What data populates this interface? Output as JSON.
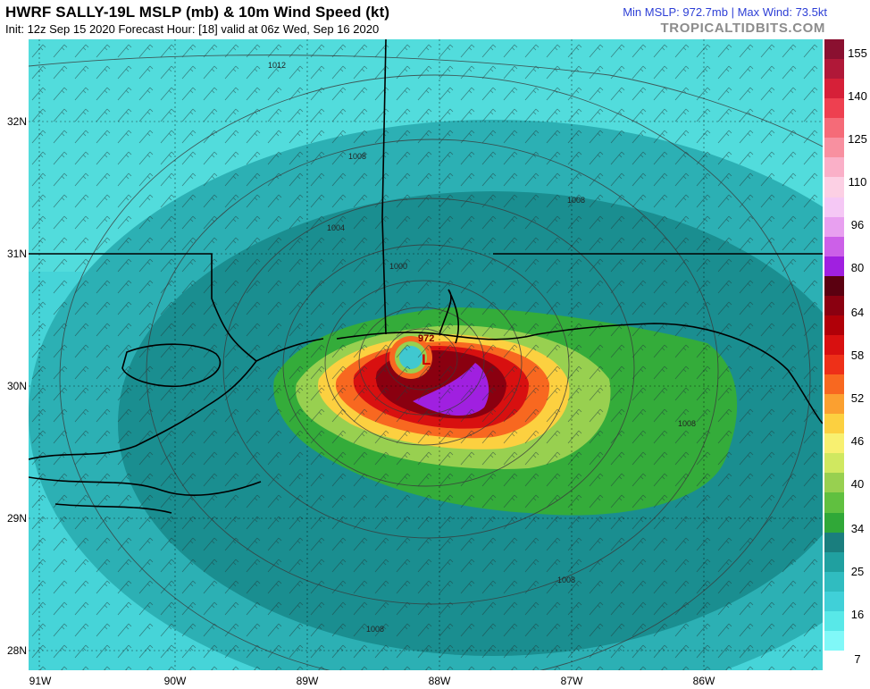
{
  "header": {
    "title": "HWRF SALLY-19L MSLP (mb) & 10m Wind Speed (kt)",
    "subtitle": "Init: 12z Sep 15 2020   Forecast Hour: [18]   valid at 06z Wed, Sep 16 2020",
    "stats": "Min MSLP: 972.7mb | Max Wind: 73.5kt",
    "brand": "TROPICALTIDBITS.COM"
  },
  "map": {
    "lat_labels": [
      "32N",
      "31N",
      "30N",
      "29N",
      "28N"
    ],
    "lon_labels": [
      "91W",
      "90W",
      "89W",
      "88W",
      "87W",
      "86W"
    ],
    "isobar_labels": [
      "1012",
      "1008",
      "1004",
      "1000",
      "1008",
      "1008",
      "1008",
      "1008"
    ],
    "center_label": "972",
    "low_marker": "L"
  },
  "colorbar": {
    "labels": [
      "155",
      "140",
      "125",
      "110",
      "96",
      "80",
      "64",
      "58",
      "52",
      "46",
      "40",
      "34",
      "25",
      "16",
      "7"
    ],
    "colors": [
      "#8a1030",
      "#b01838",
      "#d62038",
      "#ee4050",
      "#f56b78",
      "#f890a0",
      "#fab0c8",
      "#fcd0e4",
      "#f5c8f5",
      "#e8a0f0",
      "#cc60e8",
      "#a020e0",
      "#5a0010",
      "#8a0010",
      "#b00008",
      "#d81010",
      "#ee3018",
      "#f86820",
      "#fba030",
      "#fcd040",
      "#f8f070",
      "#d0e860",
      "#98d050",
      "#60c040",
      "#30a838",
      "#1a7e7e",
      "#20a0a0",
      "#30bcc0",
      "#40d0d8",
      "#58e8e8",
      "#80f8f8",
      "#ffffff"
    ]
  }
}
